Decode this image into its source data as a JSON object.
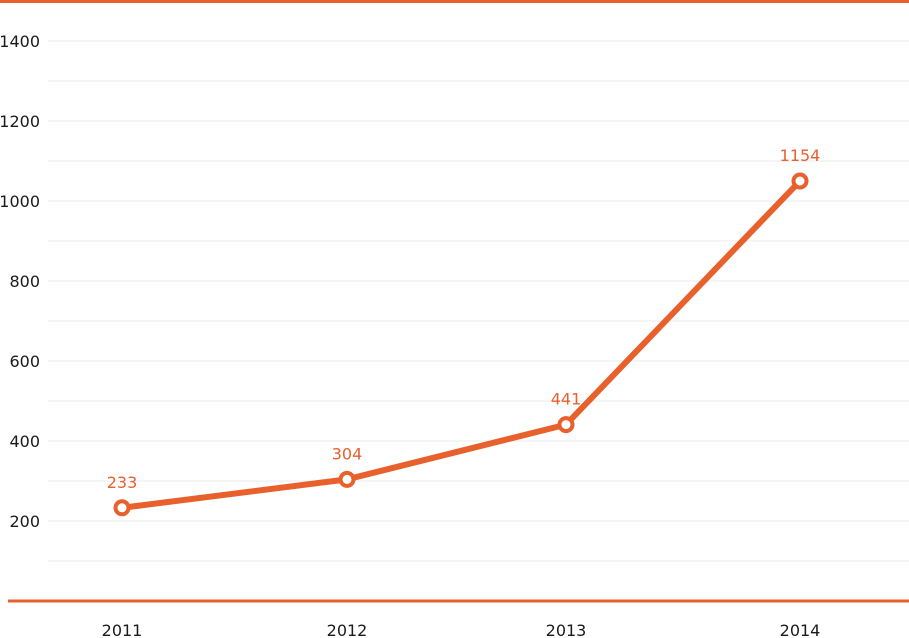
{
  "chart_data": {
    "type": "line",
    "categories": [
      "2011",
      "2012",
      "2013",
      "2014"
    ],
    "series": [
      {
        "values": [
          233,
          304,
          441,
          1154
        ],
        "data_labels": [
          "233",
          "304",
          "441",
          "1154"
        ],
        "color": "#e8602c"
      }
    ],
    "ylim": [
      0,
      1400
    ],
    "y_ticks": [
      "200",
      "400",
      "600",
      "800",
      "1000",
      "1200",
      "1400"
    ],
    "grid": true,
    "title": "",
    "xlabel": "",
    "ylabel": ""
  },
  "colors": {
    "accent": "#e8602c",
    "grid": "#ebebeb",
    "text": "#1a1a1a"
  }
}
